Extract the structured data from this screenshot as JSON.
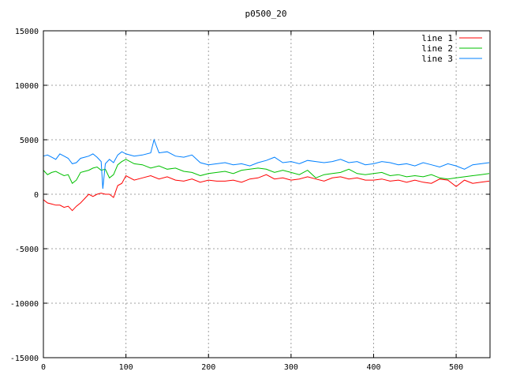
{
  "chart_data": {
    "type": "line",
    "title": "p0500_20",
    "xlabel": "",
    "ylabel": "",
    "xlim": [
      0,
      541
    ],
    "ylim": [
      -15000,
      15000
    ],
    "xticks": [
      0,
      100,
      200,
      300,
      400,
      500
    ],
    "yticks": [
      -15000,
      -10000,
      -5000,
      0,
      5000,
      10000,
      15000
    ],
    "grid": true,
    "legend_position": "top-right",
    "series": [
      {
        "name": "line 1",
        "color": "#ff0000",
        "x": [
          0,
          5,
          10,
          15,
          20,
          25,
          30,
          35,
          40,
          45,
          50,
          55,
          60,
          65,
          70,
          75,
          80,
          85,
          90,
          95,
          100,
          110,
          120,
          130,
          140,
          150,
          160,
          170,
          180,
          190,
          200,
          210,
          220,
          230,
          240,
          250,
          260,
          270,
          280,
          290,
          300,
          310,
          320,
          330,
          340,
          350,
          360,
          370,
          380,
          390,
          400,
          410,
          420,
          430,
          440,
          450,
          460,
          470,
          480,
          490,
          500,
          510,
          520,
          530,
          540
        ],
        "values": [
          -500,
          -800,
          -900,
          -1000,
          -1000,
          -1200,
          -1100,
          -1500,
          -1100,
          -800,
          -400,
          0,
          -200,
          0,
          100,
          0,
          0,
          -300,
          800,
          1000,
          1700,
          1300,
          1500,
          1700,
          1400,
          1600,
          1300,
          1200,
          1400,
          1100,
          1300,
          1200,
          1200,
          1300,
          1100,
          1400,
          1500,
          1800,
          1400,
          1500,
          1300,
          1400,
          1600,
          1400,
          1200,
          1500,
          1600,
          1400,
          1500,
          1300,
          1300,
          1400,
          1200,
          1300,
          1100,
          1300,
          1100,
          1000,
          1400,
          1300,
          700,
          1300,
          1000,
          1100,
          1200
        ]
      },
      {
        "name": "line 2",
        "color": "#00c000",
        "x": [
          0,
          5,
          10,
          15,
          20,
          25,
          30,
          35,
          40,
          45,
          50,
          55,
          60,
          65,
          70,
          75,
          80,
          85,
          90,
          95,
          100,
          110,
          120,
          130,
          140,
          150,
          160,
          170,
          180,
          190,
          200,
          210,
          220,
          230,
          240,
          250,
          260,
          270,
          280,
          290,
          300,
          310,
          320,
          330,
          340,
          350,
          360,
          370,
          380,
          390,
          400,
          410,
          420,
          430,
          440,
          450,
          460,
          470,
          480,
          490,
          500,
          510,
          520,
          530,
          540
        ],
        "values": [
          2200,
          1800,
          2000,
          2100,
          1900,
          1700,
          1800,
          1000,
          1300,
          2000,
          2100,
          2200,
          2400,
          2500,
          2200,
          2300,
          1500,
          1800,
          2700,
          3000,
          3200,
          2800,
          2700,
          2400,
          2600,
          2300,
          2400,
          2100,
          2000,
          1700,
          1900,
          2000,
          2100,
          1900,
          2200,
          2300,
          2400,
          2300,
          2000,
          2200,
          2000,
          1800,
          2200,
          1500,
          1800,
          1900,
          2000,
          2300,
          1900,
          1800,
          1900,
          2000,
          1700,
          1800,
          1600,
          1700,
          1600,
          1800,
          1500,
          1400,
          1500,
          1600,
          1700,
          1800,
          1900
        ]
      },
      {
        "name": "line 3",
        "color": "#0080ff",
        "x": [
          0,
          5,
          10,
          15,
          20,
          25,
          30,
          35,
          40,
          45,
          50,
          55,
          60,
          65,
          70,
          72,
          75,
          80,
          85,
          90,
          95,
          100,
          110,
          120,
          130,
          134,
          140,
          150,
          160,
          170,
          180,
          190,
          200,
          210,
          220,
          230,
          240,
          250,
          260,
          270,
          280,
          290,
          300,
          310,
          320,
          330,
          340,
          350,
          360,
          370,
          380,
          390,
          400,
          410,
          420,
          430,
          440,
          450,
          460,
          470,
          480,
          490,
          500,
          510,
          520,
          530,
          540
        ],
        "values": [
          3500,
          3600,
          3400,
          3200,
          3700,
          3500,
          3300,
          2800,
          2900,
          3300,
          3400,
          3500,
          3700,
          3400,
          3000,
          500,
          2800,
          3200,
          2900,
          3600,
          3900,
          3700,
          3500,
          3600,
          3800,
          5000,
          3800,
          3900,
          3500,
          3400,
          3600,
          2900,
          2700,
          2800,
          2900,
          2700,
          2800,
          2600,
          2900,
          3100,
          3400,
          2900,
          3000,
          2800,
          3100,
          3000,
          2900,
          3000,
          3200,
          2900,
          3000,
          2700,
          2800,
          3000,
          2900,
          2700,
          2800,
          2600,
          2900,
          2700,
          2500,
          2800,
          2600,
          2300,
          2700,
          2800,
          2900
        ]
      }
    ]
  }
}
